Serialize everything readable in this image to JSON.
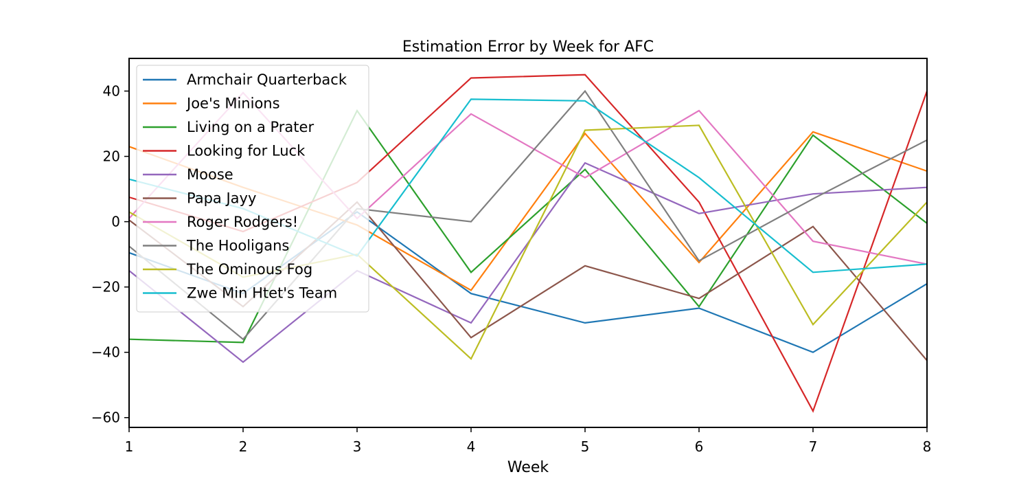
{
  "chart_data": {
    "type": "line",
    "title": "Estimation Error by Week for AFC",
    "xlabel": "Week",
    "ylabel": "",
    "xlim": [
      1,
      8
    ],
    "ylim": [
      -63,
      50
    ],
    "x_ticks": [
      1,
      2,
      3,
      4,
      5,
      6,
      7,
      8
    ],
    "y_ticks": [
      -60,
      -40,
      -20,
      0,
      20,
      40
    ],
    "y_tick_labels": [
      "−60",
      "−40",
      "−20",
      "0",
      "20",
      "40"
    ],
    "grid": false,
    "legend_position": "top-left",
    "x": [
      1,
      2,
      3,
      4,
      5,
      6,
      7,
      8
    ],
    "series": [
      {
        "name": "Armchair Quarterback",
        "color": "#1f77b4",
        "values": [
          -9.5,
          -22,
          3,
          -22,
          -31,
          -26.5,
          -40,
          -19
        ]
      },
      {
        "name": "Joe's Minions",
        "color": "#ff7f0e",
        "values": [
          23,
          10.5,
          -1,
          -21,
          27,
          -12.5,
          27.5,
          15.5
        ]
      },
      {
        "name": "Living on a Prater",
        "color": "#2ca02c",
        "values": [
          -36,
          -37,
          34,
          -15.5,
          16,
          -26,
          26.5,
          -0.5
        ]
      },
      {
        "name": "Looking for Luck",
        "color": "#d62728",
        "values": [
          7.5,
          -3,
          12,
          44,
          45,
          6,
          -58,
          40
        ]
      },
      {
        "name": "Moose",
        "color": "#9467bd",
        "values": [
          -15,
          -43,
          -15,
          -31,
          18,
          2.5,
          8.5,
          10.5
        ]
      },
      {
        "name": "Papa Jayy",
        "color": "#8c564b",
        "values": [
          0.5,
          -26,
          6,
          -35.5,
          -13.5,
          -23.5,
          -1.5,
          -42.5
        ]
      },
      {
        "name": "Roger Rodgers!",
        "color": "#e377c2",
        "values": [
          1,
          39.5,
          1,
          33,
          13.5,
          34,
          -6,
          -13
        ]
      },
      {
        "name": "The Hooligans",
        "color": "#7f7f7f",
        "values": [
          -7.5,
          -36,
          4,
          0,
          40,
          -12,
          7,
          25
        ]
      },
      {
        "name": "The Ominous Fog",
        "color": "#bcbd22",
        "values": [
          3,
          -17,
          -10,
          -42,
          28,
          29.5,
          -31.5,
          6
        ]
      },
      {
        "name": "Zwe Min Htet's Team",
        "color": "#17becf",
        "values": [
          13,
          4,
          -10.5,
          37.5,
          37,
          13.5,
          -15.5,
          -13
        ]
      }
    ]
  }
}
